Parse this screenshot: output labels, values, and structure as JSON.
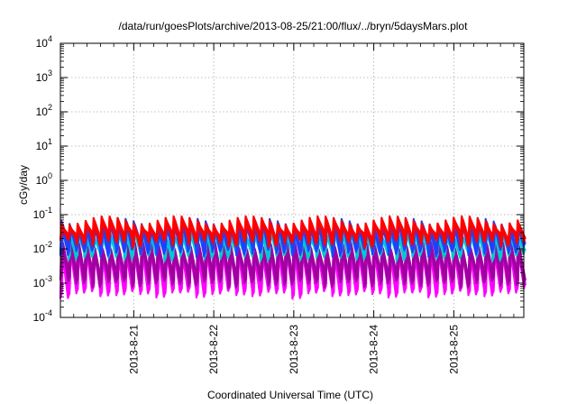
{
  "chart_data": {
    "type": "line",
    "title": "/data/run/goesPlots/archive/2013-08-25/21:00/flux/../bryn/5daysMars.plot",
    "xlabel": "Coordinated Universal Time (UTC)",
    "ylabel": "cGy/day",
    "yscale": "log",
    "ylim": [
      0.0001,
      10000
    ],
    "xlim": [
      "2013-08-20 02:00",
      "2013-08-25 21:00"
    ],
    "grid": true,
    "y_ticks": [
      {
        "value": 0.0001,
        "base": "10",
        "exp": "-4"
      },
      {
        "value": 0.001,
        "base": "10",
        "exp": "-3"
      },
      {
        "value": 0.01,
        "base": "10",
        "exp": "-2"
      },
      {
        "value": 0.1,
        "base": "10",
        "exp": "-1"
      },
      {
        "value": 1,
        "base": "10",
        "exp": "0"
      },
      {
        "value": 10,
        "base": "10",
        "exp": "1"
      },
      {
        "value": 100,
        "base": "10",
        "exp": "2"
      },
      {
        "value": 1000,
        "base": "10",
        "exp": "3"
      },
      {
        "value": 10000,
        "base": "10",
        "exp": "4"
      }
    ],
    "x_ticks": [
      "2013-8-21",
      "2013-8-22",
      "2013-8-23",
      "2013-8-24",
      "2013-8-25"
    ],
    "oscillation": {
      "period_hours": 2.4,
      "bands": [
        {
          "color": "#ff0000",
          "peak_range": [
            0.05,
            0.09
          ],
          "trough": 0.015
        },
        {
          "color": "#2040ff",
          "peak_range": [
            0.045,
            0.08
          ],
          "trough": 0.008
        },
        {
          "color": "#00c8d0",
          "peak_range": [
            0.025,
            0.04
          ],
          "trough": 0.006
        },
        {
          "color": "#a000a0",
          "peak_range": [
            0.012,
            0.02
          ],
          "trough": 0.001
        },
        {
          "color": "#ff00ff",
          "peak_range": [
            0.01,
            0.015
          ],
          "trough": 0.0005
        }
      ]
    }
  }
}
